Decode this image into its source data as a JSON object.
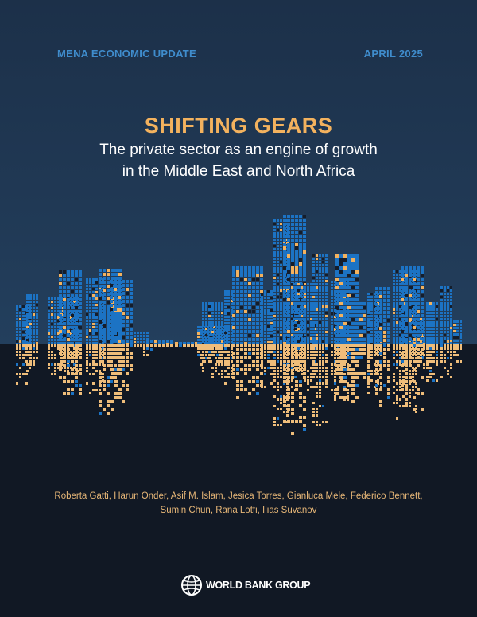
{
  "header": {
    "series": "MENA ECONOMIC UPDATE",
    "date": "APRIL 2025"
  },
  "title": "SHIFTING GEARS",
  "subtitle": {
    "line1": "The private sector as an engine of growth",
    "line2": "in the Middle East and North Africa"
  },
  "authors": {
    "line1": "Roberta Gatti, Harun Onder, Asif M. Islam, Jesica Torres, Gianluca Mele, Federico Bennett,",
    "line2": "Sumin Chun, Rana Lotfi, Ilias Suvanov"
  },
  "logo": {
    "text": "WORLD BANK GROUP",
    "icon": "globe-icon"
  },
  "colors": {
    "accent": "#f3b25e",
    "blue": "#1c73c4",
    "sky": "#233f5d",
    "ground": "#111824"
  }
}
